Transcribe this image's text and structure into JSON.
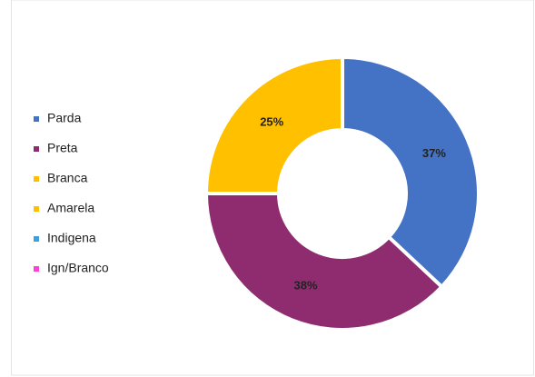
{
  "chart_data": {
    "type": "donut",
    "categories": [
      "Parda",
      "Preta",
      "Branca",
      "Amarela",
      "Indigena",
      "Ign/Branco"
    ],
    "values": [
      37,
      38,
      25,
      0,
      0,
      0
    ],
    "value_labels": [
      "37%",
      "38%",
      "25%",
      null,
      null,
      null
    ],
    "colors": [
      "#4472c4",
      "#8e2c6f",
      "#ffc000",
      "#ffc000",
      "#3f9fdc",
      "#ff3fd0"
    ],
    "legend": "left"
  }
}
